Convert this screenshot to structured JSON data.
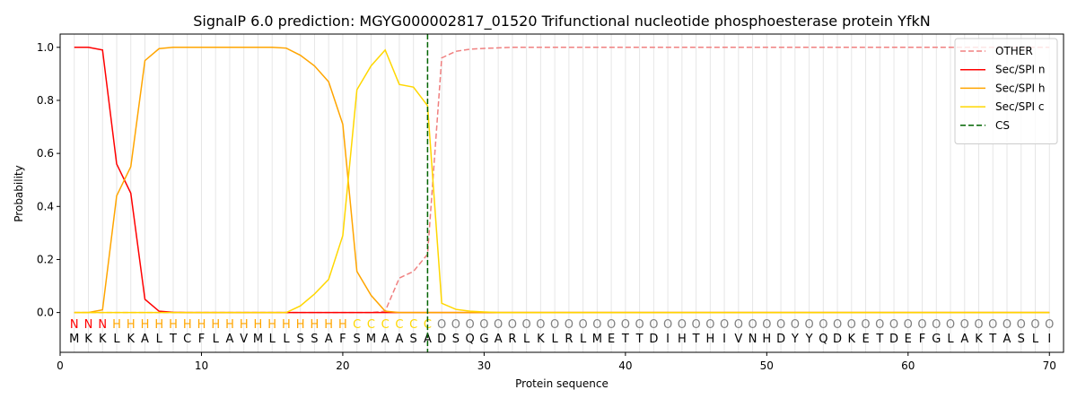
{
  "chart_data": {
    "type": "line",
    "title": "SignalP 6.0 prediction: MGYG000002817_01520 Trifunctional nucleotide phosphoesterase protein YfkN",
    "x_label": "Protein sequence",
    "y_label": "Probability",
    "x": [
      1,
      2,
      3,
      4,
      5,
      6,
      7,
      8,
      9,
      10,
      11,
      12,
      13,
      14,
      15,
      16,
      17,
      18,
      19,
      20,
      21,
      22,
      23,
      24,
      25,
      26,
      27,
      28,
      29,
      30,
      31,
      32,
      33,
      34,
      35,
      36,
      37,
      38,
      39,
      40,
      41,
      42,
      43,
      44,
      45,
      46,
      47,
      48,
      49,
      50,
      51,
      52,
      53,
      54,
      55,
      56,
      57,
      58,
      59,
      60,
      61,
      62,
      63,
      64,
      65,
      66,
      67,
      68,
      69,
      70
    ],
    "sequence": [
      "M",
      "K",
      "K",
      "L",
      "K",
      "A",
      "L",
      "T",
      "C",
      "F",
      "L",
      "A",
      "V",
      "M",
      "L",
      "L",
      "S",
      "S",
      "A",
      "F",
      "S",
      "M",
      "A",
      "A",
      "S",
      "A",
      "D",
      "S",
      "Q",
      "G",
      "A",
      "R",
      "L",
      "K",
      "L",
      "R",
      "L",
      "M",
      "E",
      "T",
      "T",
      "D",
      "I",
      "H",
      "T",
      "H",
      "I",
      "V",
      "N",
      "H",
      "D",
      "Y",
      "Y",
      "Q",
      "D",
      "K",
      "E",
      "T",
      "D",
      "E",
      "F",
      "G",
      "L",
      "A",
      "K",
      "T",
      "A",
      "S",
      "L",
      "I"
    ],
    "regions": [
      "N",
      "N",
      "N",
      "H",
      "H",
      "H",
      "H",
      "H",
      "H",
      "H",
      "H",
      "H",
      "H",
      "H",
      "H",
      "H",
      "H",
      "H",
      "H",
      "H",
      "C",
      "C",
      "C",
      "C",
      "C",
      "C",
      "O",
      "O",
      "O",
      "O",
      "O",
      "O",
      "O",
      "O",
      "O",
      "O",
      "O",
      "O",
      "O",
      "O",
      "O",
      "O",
      "O",
      "O",
      "O",
      "O",
      "O",
      "O",
      "O",
      "O",
      "O",
      "O",
      "O",
      "O",
      "O",
      "O",
      "O",
      "O",
      "O",
      "O",
      "O",
      "O",
      "O",
      "O",
      "O",
      "O",
      "O",
      "O",
      "O",
      "O"
    ],
    "region_colors": {
      "N": "#ff0000",
      "H": "#ffa500",
      "C": "#ffd700",
      "O": "#808080"
    },
    "series": [
      {
        "name": "OTHER",
        "color": "#f08080",
        "linestyle": "dashed",
        "values": [
          0,
          0,
          0,
          0,
          0,
          0,
          0,
          0,
          0,
          0,
          0,
          0,
          0,
          0,
          0,
          0,
          0,
          0,
          0,
          0,
          0,
          0,
          0.005,
          0.13,
          0.155,
          0.22,
          0.96,
          0.985,
          0.993,
          0.996,
          0.998,
          1,
          1,
          1,
          1,
          1,
          1,
          1,
          1,
          1,
          1,
          1,
          1,
          1,
          1,
          1,
          1,
          1,
          1,
          1,
          1,
          1,
          1,
          1,
          1,
          1,
          1,
          1,
          1,
          1,
          1,
          1,
          1,
          1,
          1,
          1,
          1,
          1,
          1,
          1
        ]
      },
      {
        "name": "Sec/SPI n",
        "color": "#ff0000",
        "linestyle": "solid",
        "values": [
          1,
          1,
          0.99,
          0.56,
          0.45,
          0.05,
          0.005,
          0.001,
          0,
          0,
          0,
          0,
          0,
          0,
          0,
          0,
          0,
          0,
          0,
          0,
          0,
          0,
          0,
          0,
          0,
          0,
          0,
          0,
          0,
          0,
          0,
          0,
          0,
          0,
          0,
          0,
          0,
          0,
          0,
          0,
          0,
          0,
          0,
          0,
          0,
          0,
          0,
          0,
          0,
          0,
          0,
          0,
          0,
          0,
          0,
          0,
          0,
          0,
          0,
          0,
          0,
          0,
          0,
          0,
          0,
          0,
          0,
          0,
          0,
          0
        ]
      },
      {
        "name": "Sec/SPI h",
        "color": "#ffa500",
        "linestyle": "solid",
        "values": [
          0,
          0,
          0.01,
          0.44,
          0.55,
          0.95,
          0.995,
          1,
          1,
          1,
          1,
          1,
          1,
          1,
          1,
          0.997,
          0.97,
          0.93,
          0.87,
          0.71,
          0.155,
          0.065,
          0.005,
          0,
          0,
          0,
          0,
          0,
          0,
          0,
          0,
          0,
          0,
          0,
          0,
          0,
          0,
          0,
          0,
          0,
          0,
          0,
          0,
          0,
          0,
          0,
          0,
          0,
          0,
          0,
          0,
          0,
          0,
          0,
          0,
          0,
          0,
          0,
          0,
          0,
          0,
          0,
          0,
          0,
          0,
          0,
          0,
          0,
          0,
          0
        ]
      },
      {
        "name": "Sec/SPI c",
        "color": "#ffd700",
        "linestyle": "solid",
        "values": [
          0,
          0,
          0,
          0,
          0,
          0,
          0,
          0,
          0,
          0,
          0,
          0,
          0,
          0,
          0,
          0,
          0.025,
          0.07,
          0.125,
          0.29,
          0.84,
          0.93,
          0.99,
          0.86,
          0.85,
          0.78,
          0.035,
          0.012,
          0.005,
          0.002,
          0,
          0,
          0,
          0,
          0,
          0,
          0,
          0,
          0,
          0,
          0,
          0,
          0,
          0,
          0,
          0,
          0,
          0,
          0,
          0,
          0,
          0,
          0,
          0,
          0,
          0,
          0,
          0,
          0,
          0,
          0,
          0,
          0,
          0,
          0,
          0,
          0,
          0,
          0,
          0
        ]
      }
    ],
    "markers": [
      {
        "name": "CS",
        "x": 26,
        "color": "#006400",
        "linestyle": "dashed"
      }
    ],
    "xlim": [
      0,
      71
    ],
    "ylim": [
      -0.15,
      1.05
    ],
    "xticks": [
      0,
      10,
      20,
      30,
      40,
      50,
      60,
      70
    ],
    "yticks": [
      {
        "value": 0,
        "label": "0.0"
      },
      {
        "value": 0.2,
        "label": "0.2"
      },
      {
        "value": 0.4,
        "label": "0.4"
      },
      {
        "value": 0.6,
        "label": "0.6"
      },
      {
        "value": 0.8,
        "label": "0.8"
      },
      {
        "value": 1,
        "label": "1.0"
      }
    ],
    "position_grid": true,
    "legend": "upper right"
  }
}
